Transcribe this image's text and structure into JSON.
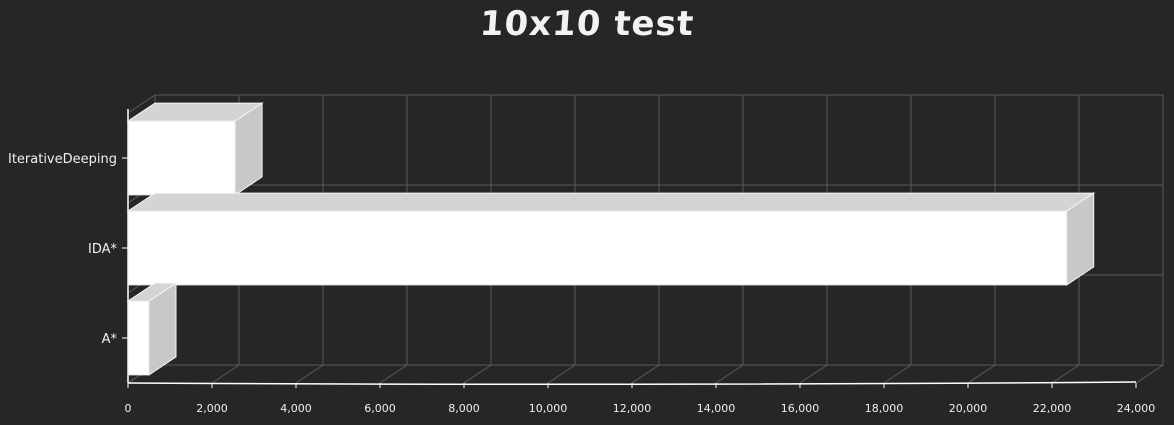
{
  "chart_data": {
    "type": "bar",
    "orientation": "horizontal",
    "style": "3d-sketch",
    "title": "10x10 test",
    "categories": [
      "IterativeDeeping",
      "IDA*",
      "A*"
    ],
    "values": [
      2550,
      22350,
      500
    ],
    "xlim": [
      0,
      24000
    ],
    "xticks": [
      0,
      2000,
      4000,
      6000,
      8000,
      10000,
      12000,
      14000,
      16000,
      18000,
      20000,
      22000,
      24000
    ],
    "xtick_labels": [
      "0",
      "2,000",
      "4,000",
      "6,000",
      "8,000",
      "10,000",
      "12,000",
      "14,000",
      "16,000",
      "18,000",
      "20,000",
      "22,000",
      "24,000"
    ],
    "xlabel": "",
    "ylabel": "",
    "grid": true,
    "legend": "none",
    "colors": {
      "background": "#262626",
      "bar_front": "#ffffff",
      "bar_top": "#d4d4d4",
      "bar_side": "#c8c8c8",
      "grid": "#5a5a5a",
      "axis": "#ffffff",
      "text": "#f0f0f0"
    }
  }
}
